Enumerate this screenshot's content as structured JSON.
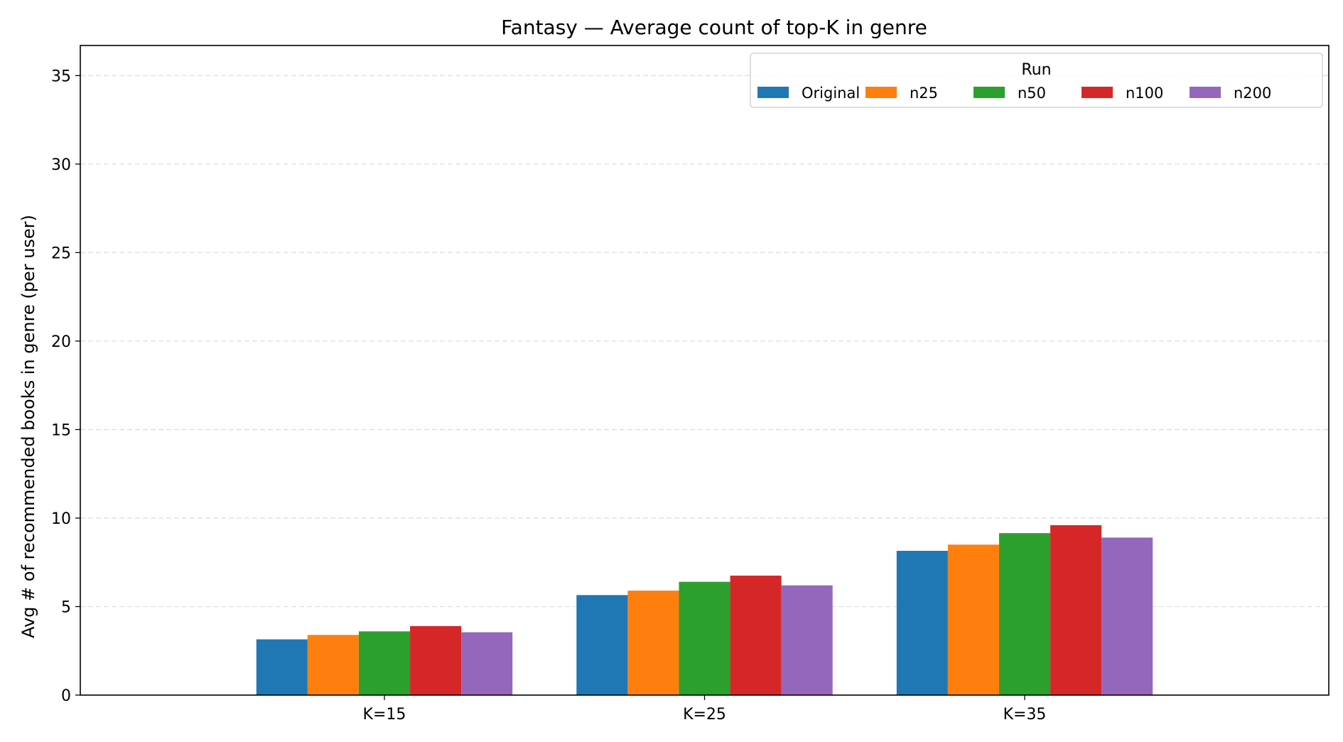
{
  "chart_data": {
    "type": "bar",
    "title": "Fantasy — Average count of top-K in genre",
    "xlabel": "",
    "ylabel": "Avg # of recommended books in genre (per user)",
    "ylim": [
      0,
      36.7
    ],
    "yticks": [
      0,
      5,
      10,
      15,
      20,
      25,
      30,
      35
    ],
    "grid": true,
    "legend": {
      "title": "Run",
      "placement": "top-right"
    },
    "categories": [
      "K=15",
      "K=25",
      "K=35"
    ],
    "series": [
      {
        "name": "Original",
        "color": "#1f77b4",
        "values": [
          3.15,
          5.65,
          8.15
        ]
      },
      {
        "name": "n25",
        "color": "#ff7f0e",
        "values": [
          3.4,
          5.9,
          8.5
        ]
      },
      {
        "name": "n50",
        "color": "#2ca02c",
        "values": [
          3.6,
          6.4,
          9.15
        ]
      },
      {
        "name": "n100",
        "color": "#d62728",
        "values": [
          3.9,
          6.75,
          9.6
        ]
      },
      {
        "name": "n200",
        "color": "#9467bd",
        "values": [
          3.55,
          6.2,
          8.9
        ]
      }
    ]
  }
}
